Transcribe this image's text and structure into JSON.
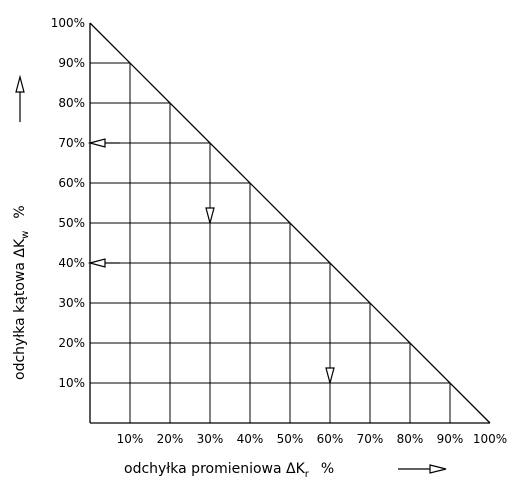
{
  "chart_data": {
    "type": "diagram",
    "y_ticks": [
      "10%",
      "20%",
      "30%",
      "40%",
      "50%",
      "60%",
      "70%",
      "80%",
      "90%",
      "100%"
    ],
    "x_ticks": [
      "10%",
      "20%",
      "30%",
      "40%",
      "50%",
      "60%",
      "70%",
      "80%",
      "90%",
      "100%"
    ],
    "xlabel": "odchyłka promieniowa  ΔK",
    "xlabel_sub": "r",
    "xlabel_unit": "%",
    "ylabel": "odchyłka kątowa  ΔK",
    "ylabel_sub": "w",
    "ylabel_unit": "%",
    "xlim": [
      0,
      100
    ],
    "ylim": [
      0,
      100
    ],
    "boundary_line": {
      "from": [
        0,
        100
      ],
      "to": [
        100,
        0
      ]
    },
    "markers": [
      {
        "type": "arrow-left",
        "at": [
          0,
          70
        ]
      },
      {
        "type": "arrow-left",
        "at": [
          0,
          40
        ]
      },
      {
        "type": "arrow-down",
        "at": [
          30,
          50
        ]
      },
      {
        "type": "arrow-down",
        "at": [
          60,
          10
        ]
      }
    ]
  }
}
